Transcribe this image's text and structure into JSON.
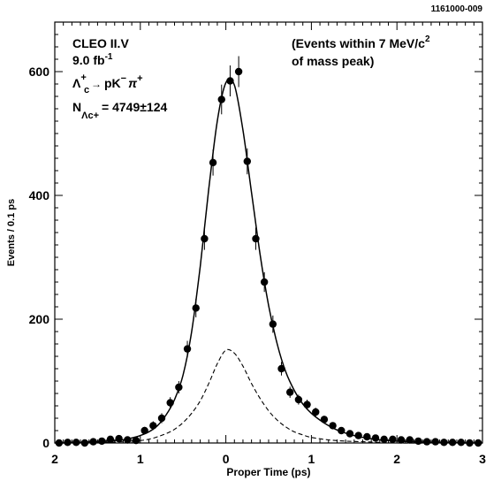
{
  "figure_id": "1161000-009",
  "chart_data": {
    "type": "scatter",
    "title": "",
    "xlabel": "Proper Time (ps)",
    "ylabel": "Events / 0.1 ps",
    "xlim": [
      -2,
      3
    ],
    "ylim": [
      0,
      680
    ],
    "x_ticks": [
      -2,
      -1,
      0,
      1,
      2,
      3
    ],
    "x_tick_labels": [
      "2",
      "1",
      "0",
      "1",
      "2",
      "3"
    ],
    "y_ticks": [
      0,
      200,
      400,
      600
    ],
    "y_tick_labels": [
      "0",
      "200",
      "400",
      "600"
    ],
    "grid": false,
    "legend": "none",
    "annotations": {
      "experiment": "CLEO II.V",
      "luminosity_value": "9.0 fb",
      "luminosity_exp": "-1",
      "decay": "Λc+ → pK− π+",
      "decay_parts": {
        "lambda": "Λ",
        "lambda_sub": "c",
        "lambda_sup": "+",
        "arrow": "→",
        "products": "pK",
        "products_sup": "−",
        "pi": "π",
        "pi_sup": "+"
      },
      "yield": "N = 4749±124",
      "yield_parts": {
        "n": "N",
        "sub": "Λc+",
        "value": "= 4749",
        "pm": "±",
        "err": "124"
      },
      "window_line1_a": "(Events within 7 MeV/c",
      "window_line1_exp": "2",
      "window_line2": "of mass peak)"
    },
    "series": [
      {
        "style": "data-points-with-errors",
        "x": [
          -1.95,
          -1.85,
          -1.75,
          -1.65,
          -1.55,
          -1.45,
          -1.35,
          -1.25,
          -1.15,
          -1.05,
          -0.95,
          -0.85,
          -0.75,
          -0.65,
          -0.55,
          -0.45,
          -0.35,
          -0.25,
          -0.15,
          -0.05,
          0.05,
          0.15,
          0.25,
          0.35,
          0.45,
          0.55,
          0.65,
          0.75,
          0.85,
          0.95,
          1.05,
          1.15,
          1.25,
          1.35,
          1.45,
          1.55,
          1.65,
          1.75,
          1.85,
          1.95,
          2.05,
          2.15,
          2.25,
          2.35,
          2.45,
          2.55,
          2.65,
          2.75,
          2.85,
          2.95
        ],
        "y": [
          0,
          1,
          1,
          0,
          2,
          3,
          6,
          7,
          5,
          4,
          20,
          28,
          40,
          65,
          90,
          152,
          218,
          330,
          453,
          555,
          585,
          600,
          455,
          330,
          260,
          192,
          120,
          82,
          70,
          62,
          50,
          38,
          28,
          20,
          15,
          12,
          10,
          8,
          6,
          6,
          5,
          5,
          3,
          2,
          2,
          1,
          1,
          1,
          0,
          0
        ],
        "yerr": [
          2,
          2,
          2,
          2,
          2,
          3,
          4,
          4,
          4,
          4,
          6,
          7,
          8,
          9,
          10,
          13,
          15,
          18,
          21,
          24,
          25,
          25,
          21,
          18,
          16,
          14,
          11,
          9,
          8,
          8,
          7,
          6,
          5,
          5,
          4,
          4,
          3,
          3,
          3,
          3,
          3,
          3,
          2,
          2,
          2,
          2,
          2,
          2,
          2,
          2
        ]
      },
      {
        "style": "solid-fit",
        "x": [
          -2.0,
          -1.9,
          -1.8,
          -1.7,
          -1.6,
          -1.5,
          -1.4,
          -1.3,
          -1.2,
          -1.1,
          -1.0,
          -0.9,
          -0.8,
          -0.7,
          -0.6,
          -0.5,
          -0.4,
          -0.3,
          -0.2,
          -0.1,
          0.0,
          0.1,
          0.2,
          0.3,
          0.4,
          0.5,
          0.6,
          0.7,
          0.8,
          0.9,
          1.0,
          1.1,
          1.2,
          1.3,
          1.4,
          1.5,
          1.6,
          1.7,
          1.8,
          1.9,
          2.0,
          2.2,
          2.4,
          2.6,
          2.8,
          3.0
        ],
        "y": [
          0,
          0,
          1,
          1,
          2,
          2,
          3,
          4,
          5,
          8,
          12,
          18,
          28,
          45,
          70,
          110,
          180,
          285,
          410,
          520,
          582,
          578,
          505,
          405,
          305,
          222,
          160,
          115,
          85,
          63,
          48,
          37,
          28,
          21,
          16,
          12,
          9,
          7,
          5,
          4,
          3,
          2,
          1,
          1,
          0,
          0
        ]
      },
      {
        "style": "dashed-background",
        "x": [
          -2.0,
          -1.8,
          -1.6,
          -1.4,
          -1.2,
          -1.0,
          -0.9,
          -0.8,
          -0.7,
          -0.6,
          -0.5,
          -0.4,
          -0.3,
          -0.2,
          -0.1,
          0.0,
          0.1,
          0.2,
          0.3,
          0.4,
          0.5,
          0.6,
          0.7,
          0.8,
          0.9,
          1.0,
          1.2,
          1.4,
          1.6,
          1.8,
          2.0,
          2.4,
          2.8,
          3.0
        ],
        "y": [
          0,
          0,
          0,
          1,
          2,
          4,
          6,
          10,
          15,
          22,
          33,
          48,
          68,
          96,
          128,
          150,
          145,
          124,
          96,
          72,
          52,
          37,
          26,
          18,
          13,
          9,
          5,
          3,
          2,
          1,
          0,
          0,
          0,
          0
        ]
      }
    ]
  }
}
